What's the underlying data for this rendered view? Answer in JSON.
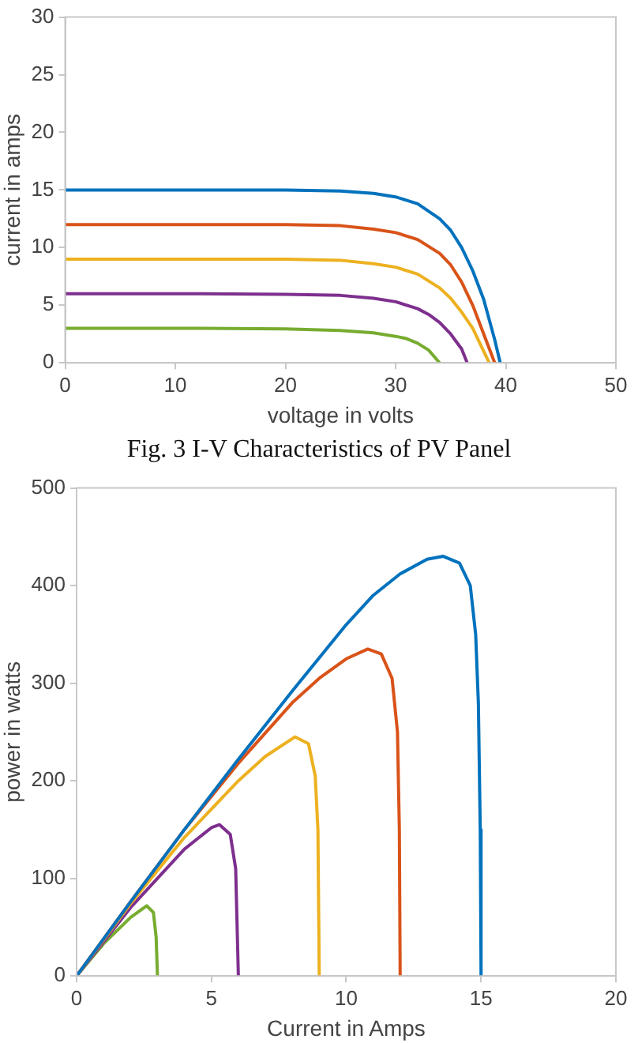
{
  "chart_data": [
    {
      "type": "line",
      "xlabel": "voltage in volts",
      "ylabel": "current in amps",
      "xlim": [
        0,
        50
      ],
      "xticks": [
        0,
        10,
        20,
        30,
        40,
        50
      ],
      "ylim": [
        0,
        30
      ],
      "yticks": [
        0,
        5,
        10,
        15,
        20,
        25,
        30
      ],
      "grid": false,
      "legend": false,
      "marker": "none",
      "line_style": "solid",
      "annotations": [
        "Fig. 3 I-V Characteristics of PV Panel"
      ],
      "series": [
        {
          "color": "#0072bd",
          "x": [
            0,
            10,
            20,
            25,
            28,
            30,
            32,
            34,
            35,
            36,
            37,
            38,
            39,
            39.5
          ],
          "values": [
            15,
            15,
            15,
            14.9,
            14.7,
            14.4,
            13.8,
            12.5,
            11.5,
            10,
            8,
            5.5,
            2,
            0
          ]
        },
        {
          "color": "#d95319",
          "x": [
            0,
            10,
            20,
            25,
            28,
            30,
            32,
            34,
            35,
            36,
            37,
            38,
            39
          ],
          "values": [
            12,
            12,
            12,
            11.9,
            11.6,
            11.3,
            10.7,
            9.5,
            8.5,
            7,
            5,
            2.5,
            0
          ]
        },
        {
          "color": "#edb120",
          "x": [
            0,
            10,
            20,
            25,
            28,
            30,
            32,
            34,
            35,
            36,
            37,
            38,
            38.5
          ],
          "values": [
            9,
            9,
            9,
            8.9,
            8.6,
            8.3,
            7.7,
            6.5,
            5.6,
            4.4,
            3,
            1,
            0
          ]
        },
        {
          "color": "#7e2f8e",
          "x": [
            0,
            10,
            20,
            25,
            28,
            30,
            32,
            33,
            34,
            35,
            36,
            36.5
          ],
          "values": [
            6,
            6,
            5.95,
            5.85,
            5.6,
            5.3,
            4.7,
            4.2,
            3.5,
            2.5,
            1.2,
            0
          ]
        },
        {
          "color": "#77ac30",
          "x": [
            0,
            10,
            20,
            25,
            28,
            30,
            31,
            32,
            33,
            34
          ],
          "values": [
            3,
            3,
            2.95,
            2.8,
            2.6,
            2.3,
            2.1,
            1.7,
            1.1,
            0
          ]
        }
      ]
    },
    {
      "type": "line",
      "xlabel": "Current in Amps",
      "ylabel": "power in watts",
      "xlim": [
        0,
        20
      ],
      "xticks": [
        0,
        5,
        10,
        15,
        20
      ],
      "ylim": [
        0,
        500
      ],
      "yticks": [
        0,
        100,
        200,
        300,
        400,
        500
      ],
      "grid": false,
      "legend": false,
      "marker": "none",
      "line_style": "solid",
      "series": [
        {
          "color": "#0072bd",
          "x": [
            0,
            2,
            4,
            6,
            8,
            10,
            11,
            12,
            13,
            13.6,
            14.2,
            14.6,
            14.8,
            14.9,
            14.97,
            15
          ],
          "values": [
            0,
            76,
            150,
            222,
            292,
            360,
            390,
            412,
            427,
            430,
            423,
            400,
            350,
            280,
            150,
            0
          ]
        },
        {
          "color": "#d95319",
          "x": [
            0,
            2,
            4,
            6,
            8,
            9,
            10,
            10.8,
            11.3,
            11.7,
            11.9,
            11.97,
            12
          ],
          "values": [
            0,
            76,
            150,
            218,
            280,
            305,
            325,
            335,
            330,
            305,
            250,
            150,
            0
          ]
        },
        {
          "color": "#edb120",
          "x": [
            0,
            2,
            4,
            6,
            7,
            8.1,
            8.6,
            8.85,
            8.95,
            9
          ],
          "values": [
            0,
            74,
            142,
            200,
            225,
            245,
            238,
            205,
            150,
            0
          ]
        },
        {
          "color": "#7e2f8e",
          "x": [
            0,
            2,
            3,
            4,
            5,
            5.3,
            5.7,
            5.9,
            6
          ],
          "values": [
            0,
            70,
            100,
            130,
            152,
            155,
            145,
            110,
            0
          ]
        },
        {
          "color": "#77ac30",
          "x": [
            0,
            1,
            2,
            2.6,
            2.85,
            2.95,
            3
          ],
          "values": [
            0,
            33,
            60,
            72,
            65,
            40,
            0
          ]
        }
      ]
    }
  ]
}
